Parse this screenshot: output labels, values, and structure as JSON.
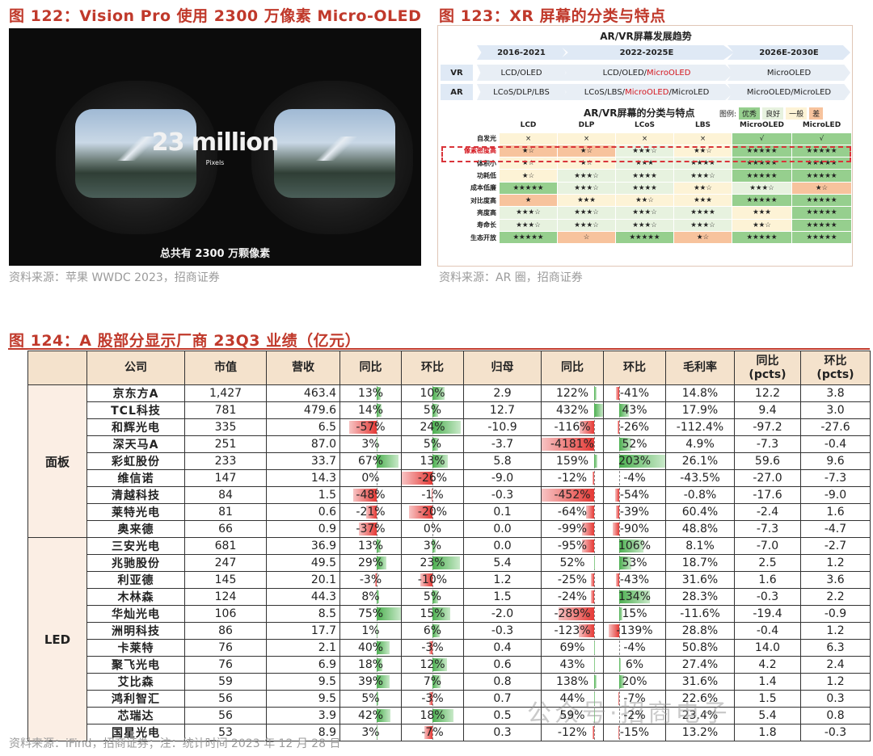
{
  "fig122": {
    "title": "图 122：Vision Pro 使用 2300 万像素 Micro-OLED",
    "photo_big": "23 million",
    "photo_small": "Pixels",
    "photo_caption": "总共有 2300 万颗像素",
    "source": "资料来源：苹果 WWDC 2023，招商证券"
  },
  "fig123": {
    "title": "图 123：XR 屏幕的分类与特点",
    "trend_title": "AR/VR屏幕发展趋势",
    "phases": [
      "2016-2021",
      "2022-2025E",
      "2026E-2030E"
    ],
    "vr_label": "VR",
    "ar_label": "AR",
    "vr_cells": [
      {
        "pre": "LCD/OLED",
        "hl": "",
        "post": ""
      },
      {
        "pre": "LCD/OLED/",
        "hl": "MicroOLED",
        "post": ""
      },
      {
        "pre": "MicroOLED",
        "hl": "",
        "post": ""
      }
    ],
    "ar_cells": [
      {
        "pre": "LCoS/DLP/LBS",
        "hl": "",
        "post": ""
      },
      {
        "pre": "LCoS/LBS/",
        "hl": "MicroOLED",
        "post": "/MicroLED"
      },
      {
        "pre": "MicroOLED/MicroLED",
        "hl": "",
        "post": ""
      }
    ],
    "matrix_title": "AR/VR屏幕的分类与特点",
    "legend_label": "图例:",
    "legend": [
      {
        "text": "优秀",
        "cls": "g1"
      },
      {
        "text": "良好",
        "cls": "g2"
      },
      {
        "text": "一般",
        "cls": "g3"
      },
      {
        "text": "差",
        "cls": "g4"
      }
    ],
    "columns": [
      "LCD",
      "DLP",
      "LCoS",
      "LBS",
      "MicroOLED",
      "MicroLED"
    ],
    "rows": [
      {
        "label": "自发光",
        "cells": [
          [
            "×",
            "g3"
          ],
          [
            "×",
            "g3"
          ],
          [
            "×",
            "g3"
          ],
          [
            "×",
            "g3"
          ],
          [
            "√",
            "g1"
          ],
          [
            "√",
            "g1"
          ]
        ]
      },
      {
        "label": "像素密度高",
        "cells": [
          [
            "★☆",
            "g4"
          ],
          [
            "★☆",
            "g4"
          ],
          [
            "★★★☆",
            "g2"
          ],
          [
            "★★☆",
            "g3"
          ],
          [
            "★★★★★",
            "g1"
          ],
          [
            "★★★★★",
            "g1"
          ]
        ]
      },
      {
        "label": "体积小",
        "cells": [
          [
            "★☆",
            "g3"
          ],
          [
            "★☆",
            "g3"
          ],
          [
            "★★★",
            "g2"
          ],
          [
            "★★★★",
            "g2"
          ],
          [
            "★★★★★",
            "g1"
          ],
          [
            "★★★★★",
            "g1"
          ]
        ]
      },
      {
        "label": "功耗低",
        "cells": [
          [
            "★☆",
            "g3"
          ],
          [
            "★★★☆",
            "g2"
          ],
          [
            "★★★★",
            "g2"
          ],
          [
            "★★★☆",
            "g2"
          ],
          [
            "★★★★★",
            "g1"
          ],
          [
            "★★★★★",
            "g1"
          ]
        ]
      },
      {
        "label": "成本低廉",
        "cells": [
          [
            "★★★★★",
            "g1"
          ],
          [
            "★★★☆",
            "g2"
          ],
          [
            "★★★★",
            "g2"
          ],
          [
            "★★☆",
            "g3"
          ],
          [
            "★★★☆",
            "g2"
          ],
          [
            "★☆",
            "g4"
          ]
        ]
      },
      {
        "label": "对比度高",
        "cells": [
          [
            "★",
            "g4"
          ],
          [
            "★★★",
            "g3"
          ],
          [
            "★★☆",
            "g3"
          ],
          [
            "★★★",
            "g3"
          ],
          [
            "★★★★★",
            "g1"
          ],
          [
            "★★★★★",
            "g1"
          ]
        ]
      },
      {
        "label": "亮度高",
        "cells": [
          [
            "★★★☆",
            "g2"
          ],
          [
            "★★★☆",
            "g2"
          ],
          [
            "★★★☆",
            "g2"
          ],
          [
            "★★★★",
            "g2"
          ],
          [
            "★★★",
            "g3"
          ],
          [
            "★★★★★",
            "g1"
          ]
        ]
      },
      {
        "label": "寿命长",
        "cells": [
          [
            "★★★☆",
            "g2"
          ],
          [
            "★★★☆",
            "g2"
          ],
          [
            "★★★☆",
            "g2"
          ],
          [
            "★★★☆",
            "g2"
          ],
          [
            "★★☆",
            "g3"
          ],
          [
            "★★★★★",
            "g1"
          ]
        ]
      },
      {
        "label": "生态开放",
        "cells": [
          [
            "★★★★★",
            "g1"
          ],
          [
            "☆",
            "g4"
          ],
          [
            "★★★★★",
            "g1"
          ],
          [
            "★☆",
            "g4"
          ],
          [
            "★★★★★",
            "g1"
          ],
          [
            "★★★★★",
            "g1"
          ]
        ]
      }
    ],
    "source": "资料来源：AR 圈，招商证券"
  },
  "fig124": {
    "title": "图 124：A 股部分显示厂商 23Q3 业绩（亿元）",
    "headers": [
      "公司",
      "市值",
      "营收",
      "同比",
      "环比",
      "归母",
      "同比",
      "环比",
      "毛利率",
      "同比\n(pcts)",
      "环比\n(pcts)"
    ],
    "segments": [
      {
        "name": "面板",
        "rows": [
          [
            "京东方A",
            "1,427",
            "463.4",
            "13%",
            "10%",
            "2.9",
            "122%",
            "-41%",
            "14.8%",
            "12.2",
            "3.8"
          ],
          [
            "TCL科技",
            "781",
            "479.6",
            "14%",
            "5%",
            "12.7",
            "432%",
            "43%",
            "17.9%",
            "9.4",
            "3.0"
          ],
          [
            "和辉光电",
            "335",
            "6.5",
            "-57%",
            "24%",
            "-10.9",
            "-116%",
            "-26%",
            "-112.4%",
            "-97.2",
            "-27.6"
          ],
          [
            "深天马A",
            "251",
            "87.0",
            "3%",
            "5%",
            "-3.7",
            "-4181%",
            "52%",
            "4.9%",
            "-7.3",
            "-0.4"
          ],
          [
            "彩虹股份",
            "233",
            "33.7",
            "67%",
            "13%",
            "5.8",
            "159%",
            "203%",
            "26.1%",
            "59.6",
            "9.6"
          ],
          [
            "维信诺",
            "147",
            "14.3",
            "0%",
            "-26%",
            "-9.0",
            "-12%",
            "-4%",
            "-43.5%",
            "-27.0",
            "-7.3"
          ],
          [
            "清越科技",
            "84",
            "1.5",
            "-48%",
            "-1%",
            "-0.3",
            "-452%",
            "-54%",
            "-0.8%",
            "-17.6",
            "-9.0"
          ],
          [
            "莱特光电",
            "81",
            "0.6",
            "-21%",
            "-20%",
            "0.1",
            "-64%",
            "-39%",
            "60.4%",
            "-2.4",
            "1.6"
          ],
          [
            "奥来德",
            "66",
            "0.9",
            "-37%",
            "0%",
            "0.0",
            "-99%",
            "-90%",
            "48.8%",
            "-7.3",
            "-4.7"
          ]
        ]
      },
      {
        "name": "LED",
        "rows": [
          [
            "三安光电",
            "681",
            "36.9",
            "13%",
            "3%",
            "0.0",
            "-95%",
            "106%",
            "8.1%",
            "-7.0",
            "-2.7"
          ],
          [
            "兆驰股份",
            "247",
            "49.5",
            "29%",
            "23%",
            "5.4",
            "52%",
            "53%",
            "18.7%",
            "2.5",
            "1.2"
          ],
          [
            "利亚德",
            "145",
            "20.1",
            "-3%",
            "-10%",
            "1.2",
            "-25%",
            "-43%",
            "31.6%",
            "1.6",
            "3.6"
          ],
          [
            "木林森",
            "124",
            "44.3",
            "8%",
            "5%",
            "1.5",
            "-24%",
            "134%",
            "28.3%",
            "-0.3",
            "2.2"
          ],
          [
            "华灿光电",
            "106",
            "8.5",
            "75%",
            "15%",
            "-2.0",
            "-289%",
            "15%",
            "-11.6%",
            "-19.4",
            "-0.9"
          ],
          [
            "洲明科技",
            "86",
            "17.7",
            "1%",
            "6%",
            "-0.3",
            "-123%",
            "-139%",
            "28.8%",
            "-0.4",
            "1.2"
          ],
          [
            "卡莱特",
            "76",
            "2.1",
            "40%",
            "-3%",
            "0.4",
            "69%",
            "-4%",
            "50.8%",
            "14.0",
            "6.3"
          ],
          [
            "聚飞光电",
            "76",
            "6.9",
            "18%",
            "12%",
            "0.6",
            "43%",
            "6%",
            "27.4%",
            "4.2",
            "2.4"
          ],
          [
            "艾比森",
            "59",
            "9.5",
            "39%",
            "7%",
            "0.8",
            "138%",
            "20%",
            "31.6%",
            "1.4",
            "1.2"
          ],
          [
            "鸿利智汇",
            "56",
            "9.5",
            "5%",
            "-3%",
            "0.7",
            "44%",
            "-7%",
            "22.6%",
            "1.5",
            "0.3"
          ],
          [
            "芯瑞达",
            "56",
            "3.9",
            "42%",
            "18%",
            "0.5",
            "59%",
            "-2%",
            "23.4%",
            "5.4",
            "0.8"
          ],
          [
            "国星光电",
            "53",
            "8.9",
            "3%",
            "-7%",
            "0.3",
            "-12%",
            "-15%",
            "13.2%",
            "1.8",
            "-0.3"
          ]
        ]
      }
    ],
    "source": "资料来源：iFind，招商证券；注：统计时间 2023 年 12 月 28 日"
  },
  "watermark": "公众号·招商电子"
}
